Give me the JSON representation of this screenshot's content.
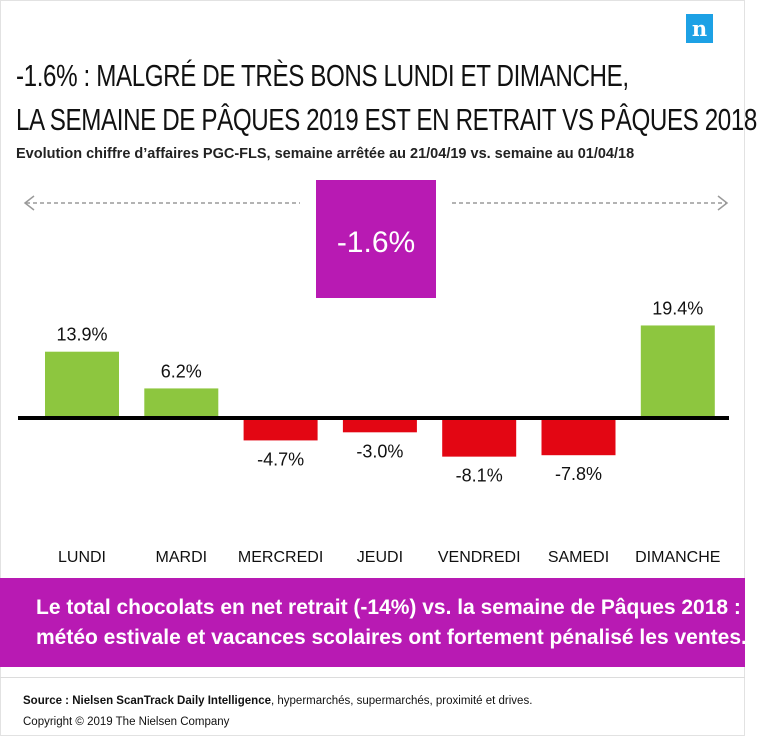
{
  "brand": {
    "logo_letter": "n",
    "logo_color": "#1da1e5"
  },
  "title_lines": [
    "-1.6% : MALGRÉ DE TRÈS BONS LUNDI ET DIMANCHE,",
    "LA SEMAINE DE PÂQUES 2019 EST EN RETRAIT VS PÂQUES 2018"
  ],
  "subtitle": "Evolution chiffre d’affaires PGC-FLS, semaine arrêtée au 21/04/19 vs. semaine au 01/04/18",
  "chart_data": {
    "type": "bar",
    "categories": [
      "LUNDI",
      "MARDI",
      "MERCREDI",
      "JEUDI",
      "VENDREDI",
      "SAMEDI",
      "DIMANCHE"
    ],
    "values": [
      13.9,
      6.2,
      -4.7,
      -3.0,
      -8.1,
      -7.8,
      19.4
    ],
    "value_labels": [
      "13.9%",
      "6.2%",
      "-4.7%",
      "-3.0%",
      "-8.1%",
      "-7.8%",
      "19.4%"
    ],
    "unit": "%",
    "total_label": "-1.6%",
    "positive_color": "#8dc63f",
    "negative_color": "#e30613",
    "total_color": "#b81ab3",
    "axis_color": "#000000",
    "arrow_color": "#9a9a9a",
    "ylim": [
      -9,
      20
    ]
  },
  "conclusion_lines": [
    "Le total chocolats  en net retrait (-14%) vs. la semaine de Pâques 2018 :",
    "météo estivale et vacances scolaires ont fortement pénalisé les ventes."
  ],
  "source": {
    "label": "Source : Nielsen ScanTrack Daily Intelligence",
    "rest": ", hypermarchés, supermarchés,  proximité et drives."
  },
  "copyright": "Copyright © 2019 The Nielsen Company"
}
